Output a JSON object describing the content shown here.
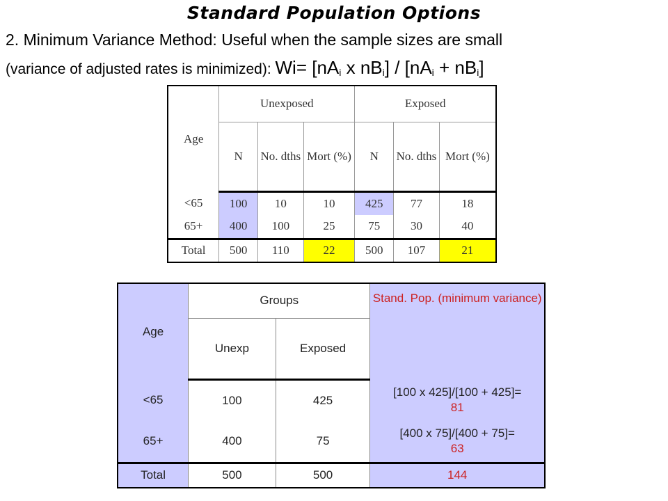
{
  "title": "Standard Population Options",
  "line1": "2. Minimum Variance Method: Useful when the sample sizes are small",
  "line2": {
    "prefix": "(variance of adjusted rates is minimized): ",
    "w": "Wi= [nA",
    "sub1": "i",
    "x": " x nB",
    "sub2": "i",
    "mid": "] / [nA",
    "sub3": "i",
    "plus": " + nB",
    "sub4": "i",
    "end": "]"
  },
  "table1": {
    "age_header": "Age",
    "group_unexposed": "Unexposed",
    "group_exposed": "Exposed",
    "col_n": "N",
    "col_dths": "No. dths",
    "col_mort": "Mort (%)",
    "rows": [
      {
        "age": "<65",
        "un_n": "100",
        "un_d": "10",
        "un_m": "10",
        "ex_n": "425",
        "ex_d": "77",
        "ex_m": "18"
      },
      {
        "age": "65+",
        "un_n": "400",
        "un_d": "100",
        "un_m": "25",
        "ex_n": "75",
        "ex_d": "30",
        "ex_m": "40"
      },
      {
        "age": "Total",
        "un_n": "500",
        "un_d": "110",
        "un_m": "22",
        "ex_n": "500",
        "ex_d": "107",
        "ex_m": "21"
      }
    ]
  },
  "table2": {
    "age_header": "Age",
    "groups_header": "Groups",
    "stand_header": "Stand. Pop. (minimum variance)",
    "col_unexp": "Unexp",
    "col_exposed": "Exposed",
    "rows": [
      {
        "age": "<65",
        "unexp": "100",
        "exposed": "425",
        "formula": "[100 x 425]/[100 + 425]=",
        "result": "81"
      },
      {
        "age": "65+",
        "unexp": "400",
        "exposed": "75",
        "formula": "[400 x 75]/[400 + 75]=",
        "result": "63"
      },
      {
        "age": "Total",
        "unexp": "500",
        "exposed": "500",
        "formula": "",
        "result": "144"
      }
    ]
  },
  "colors": {
    "blue_fill": "#ccccff",
    "yellow_fill": "#ffff00",
    "red_text": "#cc2222"
  }
}
